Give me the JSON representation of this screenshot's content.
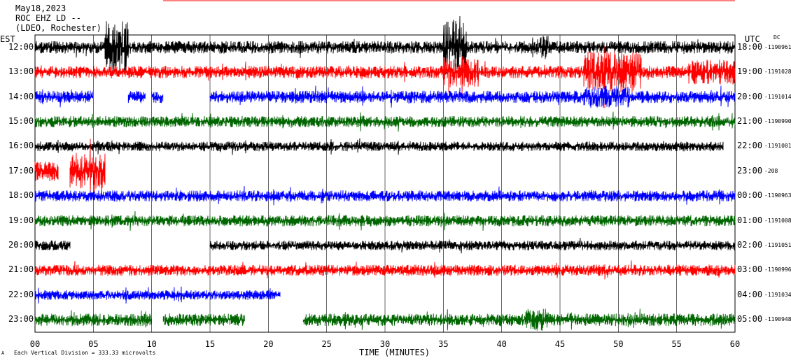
{
  "header": {
    "date": "May18,2023",
    "station": "ROC EHZ LD --",
    "network": "(LDEO, Rochester)"
  },
  "left_axis_label": "EST",
  "right_axis_label": "UTC",
  "dc_label": "DC",
  "footer_note": "Each Vertical Division = 333.33 microvolts",
  "footer_mark": "A",
  "chart_data": {
    "type": "line",
    "title": "",
    "xlabel": "TIME (MINUTES)",
    "ylabel": "",
    "xlim": [
      0,
      60
    ],
    "x_ticks": [
      "00",
      "05",
      "10",
      "15",
      "20",
      "25",
      "30",
      "35",
      "40",
      "45",
      "50",
      "55",
      "60"
    ],
    "grid": true,
    "vertical_division_microvolts": 333.33,
    "series": [
      {
        "est": "12:00",
        "utc": "18:00",
        "dc": "-1190961",
        "color": "#000000",
        "amp": 9,
        "segments": [
          [
            0,
            60
          ]
        ],
        "events": [
          {
            "at": 6,
            "to": 8,
            "amp": 38
          },
          {
            "at": 35,
            "to": 37,
            "amp": 40
          },
          {
            "at": 43,
            "to": 44,
            "amp": 18
          }
        ]
      },
      {
        "est": "13:00",
        "utc": "19:00",
        "dc": "-1191028",
        "color": "#ff0000",
        "amp": 9,
        "segments": [
          [
            0,
            60
          ]
        ],
        "events": [
          {
            "at": 35,
            "to": 38,
            "amp": 22
          },
          {
            "at": 47,
            "to": 52,
            "amp": 30
          },
          {
            "at": 56,
            "to": 60,
            "amp": 18
          }
        ]
      },
      {
        "est": "14:00",
        "utc": "20:00",
        "dc": "-1191014",
        "color": "#0000ff",
        "amp": 9,
        "segments": [
          [
            0,
            5
          ],
          [
            8,
            9.5
          ],
          [
            10,
            11
          ],
          [
            15,
            60
          ]
        ],
        "events": [
          {
            "at": 47,
            "to": 51,
            "amp": 16
          }
        ]
      },
      {
        "est": "15:00",
        "utc": "21:00",
        "dc": "-1190990",
        "color": "#006600",
        "amp": 8,
        "segments": [
          [
            0,
            60
          ]
        ],
        "events": []
      },
      {
        "est": "16:00",
        "utc": "22:00",
        "dc": "-1191001",
        "color": "#000000",
        "amp": 7,
        "segments": [
          [
            0,
            59
          ]
        ],
        "events": []
      },
      {
        "est": "17:00",
        "utc": "23:00",
        "dc": "-208",
        "color": "#ff0000",
        "amp": 14,
        "segments": [
          [
            0,
            2
          ],
          [
            3,
            6
          ]
        ],
        "events": [
          {
            "at": 3,
            "to": 6,
            "amp": 26
          }
        ]
      },
      {
        "est": "18:00",
        "utc": "00:00",
        "dc": "-1190963",
        "color": "#0000ff",
        "amp": 8,
        "segments": [
          [
            0,
            60
          ]
        ],
        "events": []
      },
      {
        "est": "19:00",
        "utc": "01:00",
        "dc": "-1191008",
        "color": "#006600",
        "amp": 8,
        "segments": [
          [
            0,
            60
          ]
        ],
        "events": []
      },
      {
        "est": "20:00",
        "utc": "02:00",
        "dc": "-1191051",
        "color": "#000000",
        "amp": 7,
        "segments": [
          [
            0,
            3
          ],
          [
            15,
            60
          ]
        ],
        "events": []
      },
      {
        "est": "21:00",
        "utc": "03:00",
        "dc": "-1190996",
        "color": "#ff0000",
        "amp": 8,
        "segments": [
          [
            0,
            60
          ]
        ],
        "events": []
      },
      {
        "est": "22:00",
        "utc": "04:00",
        "dc": "-1191034",
        "color": "#0000ff",
        "amp": 7,
        "segments": [
          [
            0,
            21
          ]
        ],
        "events": []
      },
      {
        "est": "23:00",
        "utc": "05:00",
        "dc": "-1190948",
        "color": "#006600",
        "amp": 9,
        "segments": [
          [
            0,
            10
          ],
          [
            11,
            18
          ],
          [
            23,
            60
          ]
        ],
        "events": [
          {
            "at": 42,
            "to": 44,
            "amp": 16
          }
        ]
      }
    ]
  }
}
